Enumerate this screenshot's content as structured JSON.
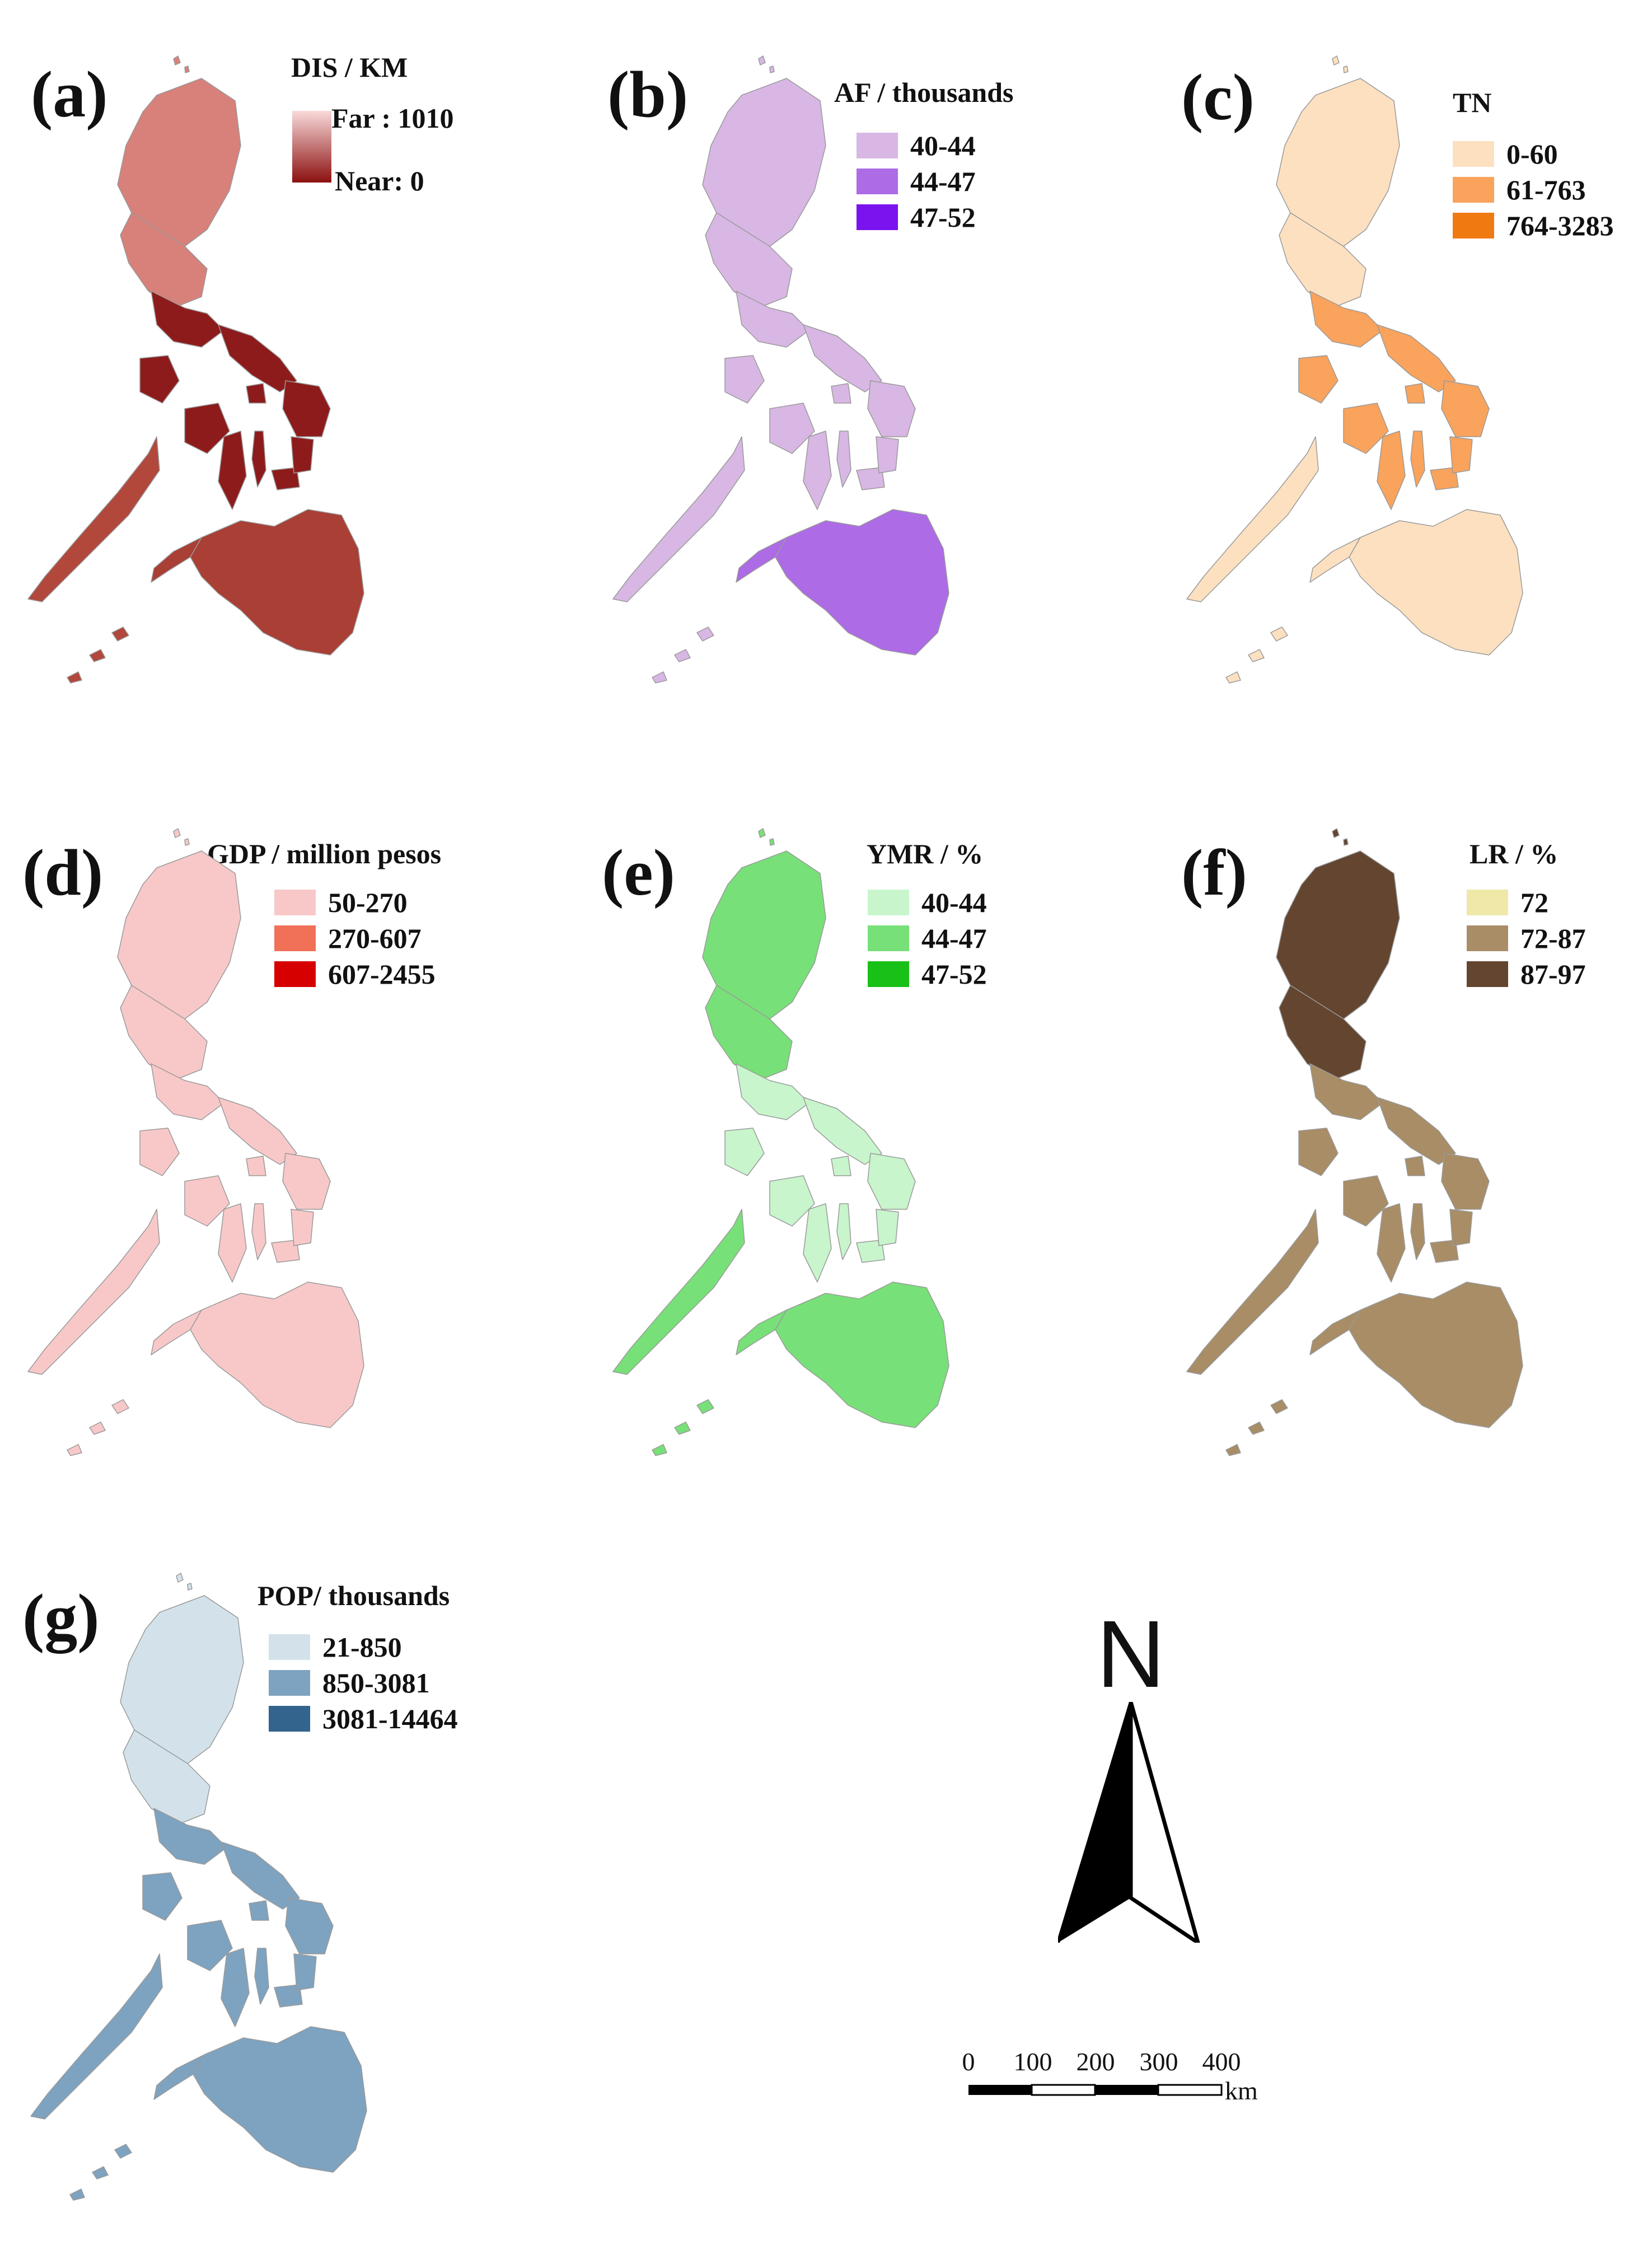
{
  "panels": [
    {
      "id": "a",
      "letter": "(a)",
      "title": "DIS / KM",
      "type": "gradient",
      "gradient": {
        "far": "Far : 1010",
        "near": "Near: 0",
        "light": "#f9dada",
        "dark": "#8c1010"
      },
      "colors": {
        "n": "#d8807a",
        "c": "#8e1b1b",
        "s": "#a93f35",
        "w": "#b2473c"
      }
    },
    {
      "id": "b",
      "letter": "(b)",
      "title": "AF / thousands",
      "type": "classes",
      "classes": [
        {
          "label": "40-44",
          "color": "#d8b7e4"
        },
        {
          "label": "44-47",
          "color": "#ad6be6"
        },
        {
          "label": "47-52",
          "color": "#7a13ee"
        }
      ],
      "colors": {
        "n": "#d8b7e4",
        "c": "#d8b7e4",
        "s": "#ad6be6",
        "w": "#d8b7e4"
      }
    },
    {
      "id": "c",
      "letter": "(c)",
      "title": "TN",
      "type": "classes",
      "classes": [
        {
          "label": "0-60",
          "color": "#fde0c0"
        },
        {
          "label": "61-763",
          "color": "#f9a35c"
        },
        {
          "label": "764-3283",
          "color": "#f07a12"
        }
      ],
      "colors": {
        "n": "#fde0c0",
        "c": "#f9a35c",
        "s": "#fde0c0",
        "w": "#fde0c0"
      }
    },
    {
      "id": "d",
      "letter": "(d)",
      "title": "GDP / million pesos",
      "type": "classes",
      "classes": [
        {
          "label": "50-270",
          "color": "#f8c8c8"
        },
        {
          "label": "270-607",
          "color": "#f07058"
        },
        {
          "label": "607-2455",
          "color": "#d60000"
        }
      ],
      "colors": {
        "n": "#f8c8c8",
        "c": "#f8c8c8",
        "s": "#f8c8c8",
        "w": "#f8c8c8"
      }
    },
    {
      "id": "e",
      "letter": "(e)",
      "title": "YMR / %",
      "type": "classes",
      "classes": [
        {
          "label": "40-44",
          "color": "#c8f5cc"
        },
        {
          "label": "44-47",
          "color": "#78e078"
        },
        {
          "label": "47-52",
          "color": "#18c018"
        }
      ],
      "colors": {
        "n": "#78e078",
        "c": "#c8f5cc",
        "s": "#78e078",
        "w": "#78e078"
      }
    },
    {
      "id": "f",
      "letter": "(f)",
      "title": "LR / %",
      "type": "classes",
      "classes": [
        {
          "label": "72",
          "color": "#efe8a8"
        },
        {
          "label": "72-87",
          "color": "#a88d66"
        },
        {
          "label": "87-97",
          "color": "#634530"
        }
      ],
      "colors": {
        "n": "#634530",
        "c": "#a88d66",
        "s": "#a88d66",
        "w": "#a88d66"
      }
    },
    {
      "id": "g",
      "letter": "(g)",
      "title": "POP/ thousands",
      "type": "classes",
      "classes": [
        {
          "label": "21-850",
          "color": "#d3e2ea"
        },
        {
          "label": "850-3081",
          "color": "#7ea3c0"
        },
        {
          "label": "3081-14464",
          "color": "#32648e"
        }
      ],
      "colors": {
        "n": "#d3e2ea",
        "c": "#7ea3c0",
        "s": "#7ea3c0",
        "w": "#7ea3c0"
      }
    }
  ],
  "north_arrow": {
    "label": "N"
  },
  "scale_bar": {
    "ticks": [
      "0",
      "100",
      "200",
      "300",
      "400"
    ],
    "unit": "km"
  }
}
